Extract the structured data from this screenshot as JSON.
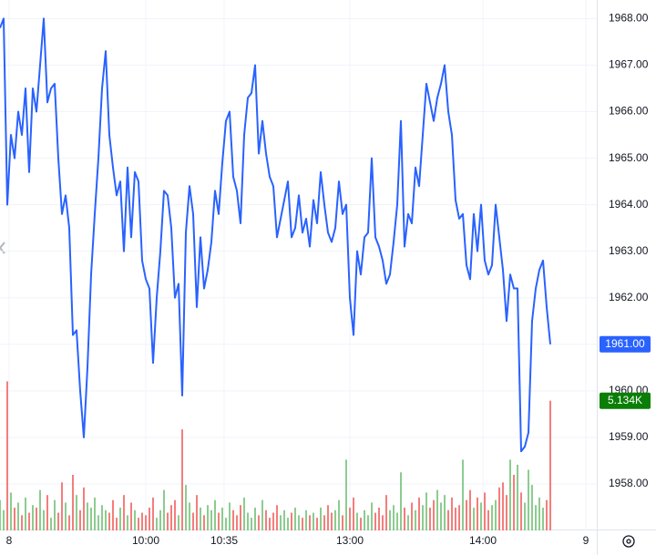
{
  "chart_data": {
    "type": "line",
    "x": [
      0,
      1,
      2,
      3,
      4,
      5,
      6,
      7,
      8,
      9,
      10,
      11,
      12,
      13,
      14,
      15,
      16,
      17,
      18,
      19,
      20,
      21,
      22,
      23,
      24,
      25,
      26,
      27,
      28,
      29,
      30,
      31,
      32,
      33,
      34,
      35,
      36,
      37,
      38,
      39,
      40,
      41,
      42,
      43,
      44,
      45,
      46,
      47,
      48,
      49,
      50,
      51,
      52,
      53,
      54,
      55,
      56,
      57,
      58,
      59,
      60,
      61,
      62,
      63,
      64,
      65,
      66,
      67,
      68,
      69,
      70,
      71,
      72,
      73,
      74,
      75,
      76,
      77,
      78,
      79,
      80,
      81,
      82,
      83,
      84,
      85,
      86,
      87,
      88,
      89,
      90,
      91,
      92,
      93,
      94,
      95,
      96,
      97,
      98,
      99,
      100,
      101,
      102,
      103,
      104,
      105,
      106,
      107,
      108,
      109,
      110,
      111,
      112,
      113,
      114,
      115,
      116,
      117,
      118,
      119,
      120,
      121,
      122,
      123,
      124,
      125,
      126,
      127,
      128,
      129,
      130,
      131,
      132,
      133,
      134,
      135,
      136,
      137,
      138,
      139,
      140,
      141,
      142,
      143,
      144,
      145,
      146,
      147,
      148,
      149,
      150,
      151
    ],
    "series": [
      {
        "color": "#2962ff",
        "values": [
          1967.8,
          1968,
          1964,
          1965.5,
          1965,
          1966,
          1965.5,
          1966.5,
          1964.7,
          1966.5,
          1966,
          1967,
          1968,
          1966.2,
          1966.5,
          1966.6,
          1965,
          1963.8,
          1964.2,
          1963.5,
          1961.2,
          1961.3,
          1960,
          1959,
          1960.5,
          1962.5,
          1963.8,
          1965,
          1966.5,
          1967.3,
          1965.5,
          1964.8,
          1964.2,
          1964.5,
          1963,
          1964.8,
          1963.3,
          1964.7,
          1964.5,
          1962.8,
          1962.4,
          1962.2,
          1960.6,
          1962,
          1963,
          1964.3,
          1964.2,
          1963.5,
          1962,
          1962.3,
          1959.9,
          1963.4,
          1964.4,
          1963.8,
          1961.8,
          1963.3,
          1962.2,
          1962.6,
          1963.2,
          1964.3,
          1963.8,
          1964.9,
          1965.8,
          1966,
          1964.6,
          1964.3,
          1963.6,
          1965.5,
          1966.3,
          1966.4,
          1967,
          1965.1,
          1965.8,
          1965.1,
          1964.6,
          1964.4,
          1963.3,
          1963.7,
          1964.1,
          1964.5,
          1963.3,
          1963.5,
          1964.2,
          1963.4,
          1963.7,
          1963.1,
          1964.1,
          1963.6,
          1964.7,
          1964,
          1963.4,
          1963.2,
          1963.5,
          1964.5,
          1963.8,
          1964,
          1962,
          1961.2,
          1963,
          1962.5,
          1963.3,
          1963.4,
          1965,
          1963.3,
          1963.1,
          1962.8,
          1962.3,
          1962.5,
          1963.2,
          1964,
          1965.8,
          1963.1,
          1963.8,
          1963.6,
          1964.8,
          1964.4,
          1965.5,
          1966.6,
          1966.2,
          1965.8,
          1966.3,
          1966.6,
          1967,
          1966,
          1965.5,
          1964.1,
          1963.7,
          1963.8,
          1962.7,
          1962.4,
          1963.8,
          1963,
          1964,
          1962.8,
          1962.5,
          1962.7,
          1964,
          1963.3,
          1962.6,
          1961.5,
          1962.5,
          1962.2,
          1962.2,
          1958.7,
          1958.8,
          1959.1,
          1961.5,
          1962.2,
          1962.6,
          1962.8,
          1961.8,
          1961
        ]
      },
      {
        "type": "bar",
        "axis": "y2",
        "up_color": "#66bb6a",
        "down_color": "#ef5350",
        "values": [
          1.2,
          0.8,
          5.9,
          1.5,
          0.9,
          1.1,
          0.6,
          1.3,
          0.7,
          1.0,
          0.9,
          1.6,
          0.8,
          1.4,
          0.5,
          1.2,
          0.7,
          1.9,
          1.1,
          0.6,
          2.2,
          1.4,
          0.8,
          1.7,
          1.1,
          0.9,
          1.3,
          0.6,
          1.0,
          0.8,
          0.7,
          1.2,
          0.5,
          0.9,
          1.4,
          0.6,
          1.1,
          0.8,
          0.5,
          0.7,
          0.6,
          0.9,
          1.3,
          0.5,
          0.8,
          1.6,
          0.7,
          1.0,
          1.2,
          0.6,
          4.0,
          1.8,
          1.1,
          0.7,
          1.4,
          0.9,
          0.6,
          1.0,
          0.8,
          1.2,
          0.7,
          0.9,
          0.5,
          1.1,
          0.8,
          0.6,
          1.0,
          1.3,
          0.7,
          0.5,
          0.9,
          0.6,
          1.2,
          0.8,
          0.5,
          0.7,
          1.0,
          0.6,
          0.8,
          0.5,
          0.7,
          0.9,
          0.6,
          0.5,
          0.8,
          0.6,
          0.7,
          0.5,
          0.9,
          0.6,
          1.0,
          0.7,
          0.8,
          1.2,
          0.6,
          2.8,
          0.9,
          1.3,
          0.7,
          0.5,
          0.8,
          0.6,
          1.1,
          0.7,
          0.9,
          0.6,
          1.4,
          0.8,
          1.0,
          0.7,
          2.3,
          0.9,
          0.6,
          1.1,
          0.8,
          1.3,
          1.0,
          1.5,
          0.9,
          1.2,
          1.6,
          1.1,
          1.4,
          0.8,
          1.3,
          0.9,
          1.0,
          2.8,
          1.2,
          1.6,
          0.9,
          1.3,
          1.1,
          1.5,
          0.8,
          1.0,
          1.2,
          1.7,
          1.9,
          1.4,
          2.8,
          2.2,
          2.6,
          1.5,
          1.1,
          2.4,
          1.8,
          1.0,
          1.3,
          0.9,
          1.2,
          5.134
        ]
      }
    ],
    "xlim": [
      0,
      180
    ],
    "xticks": [
      {
        "value": 2.5,
        "label": "8"
      },
      {
        "value": 40,
        "label": "10:00"
      },
      {
        "value": 61.5,
        "label": "10:35"
      },
      {
        "value": 96,
        "label": "13:00"
      },
      {
        "value": 132.5,
        "label": "14:00"
      },
      {
        "value": 160.75,
        "label": "9"
      }
    ],
    "ylim": [
      1957,
      1968.4
    ],
    "yticks": [
      {
        "value": 1958,
        "label": "1958.00"
      },
      {
        "value": 1959,
        "label": "1959.00"
      },
      {
        "value": 1960,
        "label": "1960.00"
      },
      {
        "value": 1961,
        "label": "1961.00"
      },
      {
        "value": 1962,
        "label": "1962.00"
      },
      {
        "value": 1963,
        "label": "1963.00"
      },
      {
        "value": 1964,
        "label": "1964.00"
      },
      {
        "value": 1965,
        "label": "1965.00"
      },
      {
        "value": 1966,
        "label": "1966.00"
      },
      {
        "value": 1967,
        "label": "1967.00"
      },
      {
        "value": 1968,
        "label": "1968.00"
      }
    ],
    "y2lim": [
      0,
      21
    ],
    "annotations": [
      {
        "value": 1961,
        "label": "1961.00",
        "color": "#2962ff"
      },
      {
        "value": 5.134,
        "label": "5.134K",
        "axis": "y2",
        "color": "#0a7e07"
      }
    ],
    "grid": true
  }
}
